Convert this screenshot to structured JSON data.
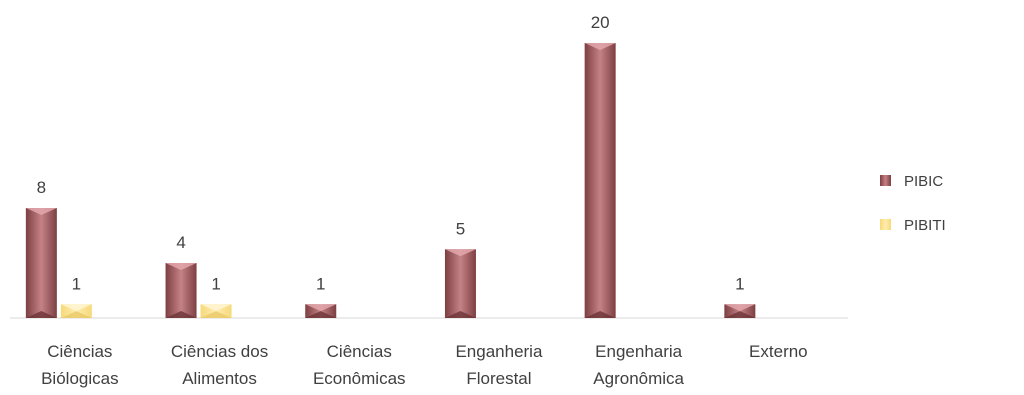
{
  "chart_data": {
    "type": "bar",
    "categories": [
      [
        "Ciências",
        "Biólogicas"
      ],
      [
        "Ciências dos",
        "Alimentos"
      ],
      [
        "Ciências",
        "Econômicas"
      ],
      [
        "Enganheria",
        "Florestal"
      ],
      [
        "Engenharia",
        "Agronômica"
      ],
      [
        "Externo"
      ]
    ],
    "series": [
      {
        "name": "PIBIC",
        "values": [
          8,
          4,
          1,
          5,
          20,
          1
        ],
        "color": "#b36a6e"
      },
      {
        "name": "PIBITI",
        "values": [
          1,
          1,
          null,
          null,
          null,
          null
        ],
        "color": "#ffe699"
      }
    ],
    "ylim": [
      0,
      20
    ],
    "grid": false,
    "legend": "right",
    "data_labels": true
  }
}
